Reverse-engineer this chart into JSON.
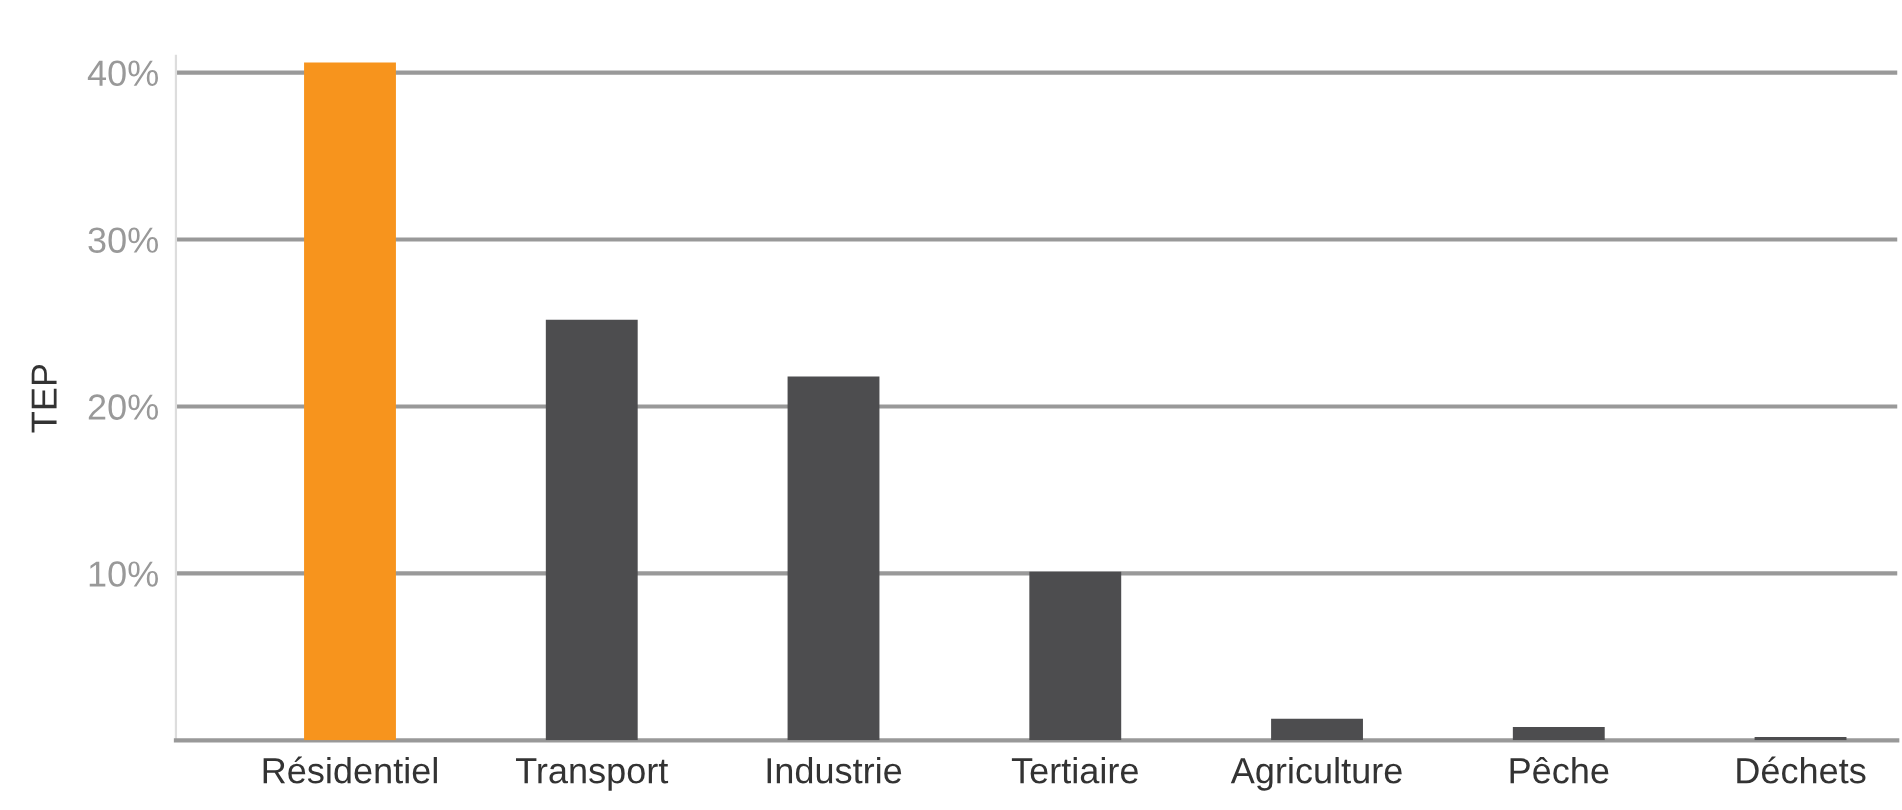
{
  "chart_data": {
    "type": "bar",
    "ylabel": "TEP",
    "categories": [
      "Résidentiel",
      "Transport",
      "Industrie",
      "Tertiaire",
      "Agriculture",
      "Pêche",
      "Déchets"
    ],
    "values": [
      40.6,
      25.2,
      21.8,
      10.1,
      1.3,
      0.8,
      0.2
    ],
    "colors": [
      "#f7941d",
      "#4d4d4f",
      "#4d4d4f",
      "#4d4d4f",
      "#4d4d4f",
      "#4d4d4f",
      "#4d4d4f"
    ],
    "ylim": [
      0,
      41
    ],
    "yticks": [
      {
        "value": 10,
        "label": "10%"
      },
      {
        "value": 20,
        "label": "20%"
      },
      {
        "value": 30,
        "label": "30%"
      },
      {
        "value": 40,
        "label": "40%"
      }
    ],
    "grid": "y",
    "legend": false
  }
}
